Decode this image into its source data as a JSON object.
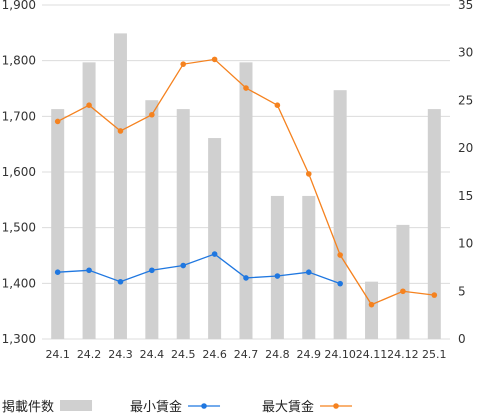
{
  "chart_data": {
    "type": "bar+line",
    "categories": [
      "24.1",
      "24.2",
      "24.3",
      "24.4",
      "24.5",
      "24.6",
      "24.7",
      "24.8",
      "24.9",
      "24.10",
      "24.11",
      "24.12",
      "25.1"
    ],
    "left_axis": {
      "ylim": [
        1300,
        1900
      ],
      "ticks": [
        "1,300",
        "1,400",
        "1,500",
        "1,600",
        "1,700",
        "1,800",
        "1,900"
      ]
    },
    "right_axis": {
      "ylim": [
        0,
        35
      ],
      "ticks": [
        "0",
        "5",
        "10",
        "15",
        "20",
        "25",
        "30",
        "35"
      ]
    },
    "grid": true,
    "legend_position": "bottom",
    "series": [
      {
        "name": "掲載件数",
        "type": "bar",
        "axis": "left",
        "color": "#d0d0d0",
        "values": [
          1713,
          1797,
          1849,
          1729,
          1713,
          1661,
          1797,
          1557,
          1557,
          1747,
          1403,
          1505,
          1713
        ]
      },
      {
        "name": "最小賃金",
        "type": "line",
        "axis": "right",
        "color": "#1f77e0",
        "values": [
          7.0,
          7.2,
          6.0,
          7.2,
          7.7,
          8.9,
          6.4,
          6.6,
          7.0,
          5.8,
          null,
          null,
          null
        ]
      },
      {
        "name": "最大賃金",
        "type": "line",
        "axis": "right",
        "color": "#f5821f",
        "values": [
          22.8,
          24.5,
          21.8,
          23.5,
          28.8,
          29.3,
          26.3,
          24.5,
          17.3,
          8.8,
          3.6,
          5.0,
          4.6
        ]
      }
    ]
  }
}
